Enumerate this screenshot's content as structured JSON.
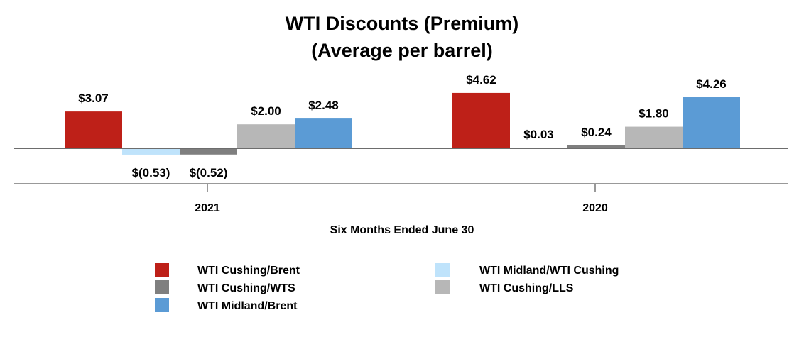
{
  "chart_data": {
    "type": "bar",
    "title": "WTI Discounts (Premium)",
    "subtitle": "(Average per barrel)",
    "xlabel": "Six Months Ended June 30",
    "ylabel": "",
    "categories": [
      "2021",
      "2020"
    ],
    "series": [
      {
        "name": "WTI Cushing/Brent",
        "color": "#be2018",
        "values": [
          3.07,
          4.62
        ],
        "labels": [
          "$3.07",
          "$4.62"
        ]
      },
      {
        "name": "WTI Midland/WTI Cushing",
        "color": "#bfe3fb",
        "values": [
          -0.53,
          0.03
        ],
        "labels": [
          "$(0.53)",
          "$0.03"
        ]
      },
      {
        "name": "WTI Cushing/WTS",
        "color": "#7f7f7f",
        "values": [
          -0.52,
          0.24
        ],
        "labels": [
          "$(0.52)",
          "$0.24"
        ]
      },
      {
        "name": "WTI Cushing/LLS",
        "color": "#b7b7b7",
        "values": [
          2.0,
          1.8
        ],
        "labels": [
          "$2.00",
          "$1.80"
        ]
      },
      {
        "name": "WTI Midland/Brent",
        "color": "#5b9bd5",
        "values": [
          2.48,
          4.26
        ],
        "labels": [
          "$2.48",
          "$4.26"
        ]
      }
    ],
    "grid": false,
    "legend_position": "bottom",
    "legend_order": [
      [
        "WTI Cushing/Brent",
        "WTI Midland/WTI Cushing"
      ],
      [
        "WTI Cushing/WTS",
        "WTI Cushing/LLS"
      ],
      [
        "WTI Midland/Brent"
      ]
    ]
  }
}
